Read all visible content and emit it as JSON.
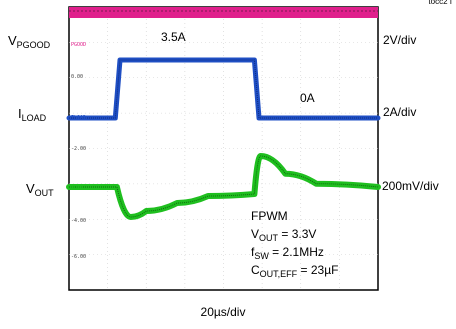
{
  "figure_id": "tocc2 I",
  "chart_data": {
    "type": "line",
    "xlabel": "20µs/div",
    "channels": [
      {
        "key": "pgood",
        "label_main": "V",
        "label_sub": "PGOOD",
        "scale": "2V/div",
        "tag": "PGOOD",
        "color": "#e0208c"
      },
      {
        "key": "iload",
        "label_main": "I",
        "label_sub": "LOAD",
        "scale": "2A/div",
        "tag": "ILOAD",
        "color": "#1f4fc4"
      },
      {
        "key": "vout",
        "label_main": "V",
        "label_sub": "OUT",
        "scale": "200mV/div",
        "tag": "VOUT",
        "color": "#1fbf1f"
      }
    ],
    "tick_values": [
      "0.00",
      "-2.00",
      "-4.00",
      "-6.00"
    ],
    "annotations": {
      "step_high": "3.5A",
      "step_low": "0A"
    },
    "conditions": [
      {
        "main": "FPWM"
      },
      {
        "main": "V",
        "sub": "OUT",
        "rest": " = 3.3V"
      },
      {
        "main": "f",
        "sub": "SW",
        "rest": " = 2.1MHz"
      },
      {
        "main": "C",
        "sub": "OUT,EFF",
        "rest": " = 23µF"
      }
    ],
    "series": [
      {
        "name": "ILOAD",
        "unit": "A",
        "t_us": [
          0,
          30,
          33,
          120,
          123,
          200
        ],
        "values": [
          0,
          0,
          3.5,
          3.5,
          0,
          0
        ]
      },
      {
        "name": "VOUT",
        "unit": "mV",
        "t_us": [
          0,
          31,
          40,
          50,
          70,
          90,
          120,
          124,
          140,
          160,
          200
        ],
        "values": [
          0,
          0,
          -150,
          -120,
          -80,
          -45,
          -35,
          140,
          60,
          15,
          0
        ]
      }
    ]
  }
}
